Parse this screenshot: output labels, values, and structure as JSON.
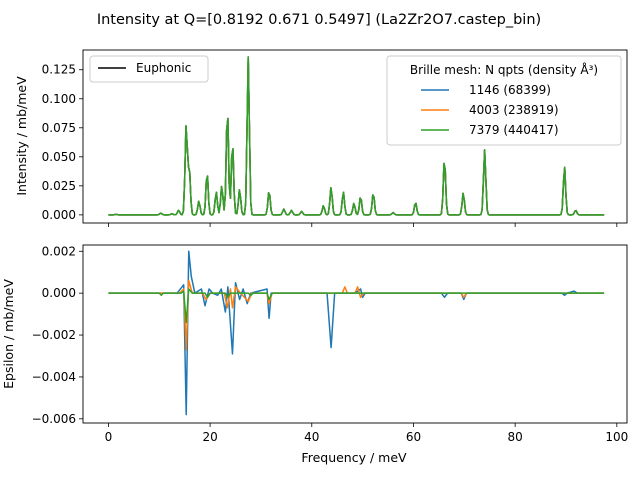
{
  "figure": {
    "title": "Intensity at Q=[0.8192 0.671  0.5497] (La2Zr2O7.castep_bin)"
  },
  "chart_data": [
    {
      "type": "line",
      "name": "intensity",
      "xlabel": "",
      "ylabel": "Intensity / mb/meV",
      "xlim": [
        -5,
        102
      ],
      "ylim": [
        -0.007,
        0.142
      ],
      "xticks": [
        0,
        20,
        40,
        60,
        80,
        100
      ],
      "xticklabels": [],
      "yticks": [
        0.0,
        0.025,
        0.05,
        0.075,
        0.1,
        0.125
      ],
      "yticklabels": [
        "0.000",
        "0.025",
        "0.050",
        "0.075",
        "0.100",
        "0.125"
      ],
      "grid": false,
      "legends": [
        {
          "placement": "upper left",
          "title": "",
          "entries": [
            {
              "label": "Euphonic",
              "color": "#000000"
            }
          ]
        },
        {
          "placement": "upper right",
          "title": "Brille mesh: N qpts (density Å³)",
          "entries": [
            {
              "label": "1146 (68399)",
              "color": "#1f77b4"
            },
            {
              "label": "4003 (238919)",
              "color": "#ff7f0e"
            },
            {
              "label": "7379 (440417)",
              "color": "#2ca02c"
            }
          ]
        }
      ],
      "x_range": [
        0,
        97.5
      ],
      "peaks": [
        {
          "x": 1.5,
          "y": 0.0005
        },
        {
          "x": 10.3,
          "y": 0.0015
        },
        {
          "x": 12.5,
          "y": 0.001
        },
        {
          "x": 13.8,
          "y": 0.004
        },
        {
          "x": 15.3,
          "y": 0.078
        },
        {
          "x": 15.9,
          "y": 0.04
        },
        {
          "x": 17.8,
          "y": 0.012
        },
        {
          "x": 19.4,
          "y": 0.037
        },
        {
          "x": 21.2,
          "y": 0.02
        },
        {
          "x": 22.3,
          "y": 0.025
        },
        {
          "x": 23.4,
          "y": 0.092
        },
        {
          "x": 24.4,
          "y": 0.063
        },
        {
          "x": 25.8,
          "y": 0.022
        },
        {
          "x": 27.5,
          "y": 0.136
        },
        {
          "x": 31.6,
          "y": 0.021
        },
        {
          "x": 34.5,
          "y": 0.005
        },
        {
          "x": 36.0,
          "y": 0.004
        },
        {
          "x": 38.0,
          "y": 0.003
        },
        {
          "x": 42.3,
          "y": 0.008
        },
        {
          "x": 43.8,
          "y": 0.024
        },
        {
          "x": 46.2,
          "y": 0.02
        },
        {
          "x": 48.3,
          "y": 0.01
        },
        {
          "x": 49.6,
          "y": 0.016
        },
        {
          "x": 52.1,
          "y": 0.019
        },
        {
          "x": 56.0,
          "y": 0.002
        },
        {
          "x": 60.4,
          "y": 0.011
        },
        {
          "x": 66.1,
          "y": 0.049
        },
        {
          "x": 69.8,
          "y": 0.019
        },
        {
          "x": 74.0,
          "y": 0.056
        },
        {
          "x": 89.7,
          "y": 0.042
        },
        {
          "x": 91.9,
          "y": 0.004
        }
      ],
      "series": [
        {
          "name": "Euphonic",
          "color": "#000000"
        },
        {
          "name": "1146 (68399)",
          "color": "#1f77b4"
        },
        {
          "name": "4003 (238919)",
          "color": "#ff7f0e"
        },
        {
          "name": "7379 (440417)",
          "color": "#2ca02c"
        }
      ]
    },
    {
      "type": "line",
      "name": "epsilon",
      "xlabel": "Frequency / meV",
      "ylabel": "Epsilon / mb/meV",
      "xlim": [
        -5,
        102
      ],
      "ylim": [
        -0.0062,
        0.0023
      ],
      "xticks": [
        0,
        20,
        40,
        60,
        80,
        100
      ],
      "xticklabels": [
        "0",
        "20",
        "40",
        "60",
        "80",
        "100"
      ],
      "yticks": [
        -0.006,
        -0.004,
        -0.002,
        0.0,
        0.002
      ],
      "yticklabels": [
        "−0.006",
        "−0.004",
        "−0.002",
        "0.000",
        "0.002"
      ],
      "grid": false,
      "x_range": [
        0,
        97.5
      ],
      "series": [
        {
          "name": "1146 (68399)",
          "color": "#1f77b4",
          "points": [
            [
              0,
              0
            ],
            [
              13.5,
              0
            ],
            [
              14.8,
              0.0004
            ],
            [
              15.3,
              -0.0058
            ],
            [
              15.8,
              0.002
            ],
            [
              16.3,
              0.0008
            ],
            [
              17.0,
              0
            ],
            [
              18.3,
              0.0002
            ],
            [
              19.0,
              -0.0006
            ],
            [
              19.8,
              0.0002
            ],
            [
              20.5,
              0
            ],
            [
              21.5,
              -0.0001
            ],
            [
              22.2,
              0.0002
            ],
            [
              23.0,
              -0.0009
            ],
            [
              23.5,
              0.0003
            ],
            [
              24.4,
              -0.0029
            ],
            [
              25.0,
              0.0005
            ],
            [
              25.8,
              -0.0003
            ],
            [
              26.5,
              0.0002
            ],
            [
              27.3,
              -0.0005
            ],
            [
              28.0,
              0
            ],
            [
              31.2,
              0.0002
            ],
            [
              31.6,
              -0.0012
            ],
            [
              32.0,
              0
            ],
            [
              43.0,
              0
            ],
            [
              43.8,
              -0.0026
            ],
            [
              44.5,
              0
            ],
            [
              48.5,
              0
            ],
            [
              49.6,
              0.0002
            ],
            [
              50.0,
              -0.0002
            ],
            [
              50.5,
              0
            ],
            [
              65.5,
              0
            ],
            [
              66.1,
              -0.0002
            ],
            [
              66.7,
              0
            ],
            [
              69.4,
              0
            ],
            [
              69.9,
              -0.0003
            ],
            [
              70.4,
              0
            ],
            [
              89.2,
              0
            ],
            [
              89.7,
              -0.0001
            ],
            [
              90.2,
              0
            ],
            [
              91.6,
              0.0001
            ],
            [
              92.2,
              0
            ],
            [
              97.5,
              0
            ]
          ]
        },
        {
          "name": "4003 (238919)",
          "color": "#ff7f0e",
          "points": [
            [
              0,
              0
            ],
            [
              14.0,
              0
            ],
            [
              14.8,
              0.0002
            ],
            [
              15.3,
              -0.0027
            ],
            [
              15.8,
              0.0006
            ],
            [
              16.5,
              0
            ],
            [
              18.5,
              0
            ],
            [
              19.2,
              -0.0003
            ],
            [
              20.0,
              0
            ],
            [
              22.8,
              0
            ],
            [
              23.4,
              -0.0007
            ],
            [
              24.0,
              0.0002
            ],
            [
              24.4,
              -0.0007
            ],
            [
              25.0,
              0.0003
            ],
            [
              26.0,
              0
            ],
            [
              27.5,
              -0.0004
            ],
            [
              28.2,
              0
            ],
            [
              31.2,
              0
            ],
            [
              31.6,
              -0.0005
            ],
            [
              32.2,
              0
            ],
            [
              46.0,
              0
            ],
            [
              46.5,
              0.0003
            ],
            [
              47.0,
              0
            ],
            [
              48.5,
              0
            ],
            [
              49.0,
              0.0003
            ],
            [
              49.6,
              -0.0002
            ],
            [
              50.2,
              0
            ],
            [
              69.4,
              0
            ],
            [
              69.9,
              -0.0002
            ],
            [
              70.4,
              0
            ],
            [
              97.5,
              0
            ]
          ]
        },
        {
          "name": "7379 (440417)",
          "color": "#2ca02c",
          "points": [
            [
              0,
              0
            ],
            [
              10.0,
              0
            ],
            [
              10.4,
              -0.0001
            ],
            [
              10.8,
              0
            ],
            [
              14.3,
              0
            ],
            [
              14.8,
              0.0001
            ],
            [
              15.3,
              -0.0014
            ],
            [
              15.8,
              0.0002
            ],
            [
              16.5,
              0
            ],
            [
              19.0,
              0
            ],
            [
              19.5,
              -0.0002
            ],
            [
              20.0,
              0
            ],
            [
              23.0,
              0
            ],
            [
              23.4,
              -0.0002
            ],
            [
              24.0,
              0
            ],
            [
              27.5,
              0
            ],
            [
              28.0,
              -0.0001
            ],
            [
              28.5,
              0
            ],
            [
              31.2,
              0
            ],
            [
              31.6,
              -0.0003
            ],
            [
              32.2,
              0
            ],
            [
              97.5,
              0
            ]
          ]
        }
      ]
    }
  ]
}
